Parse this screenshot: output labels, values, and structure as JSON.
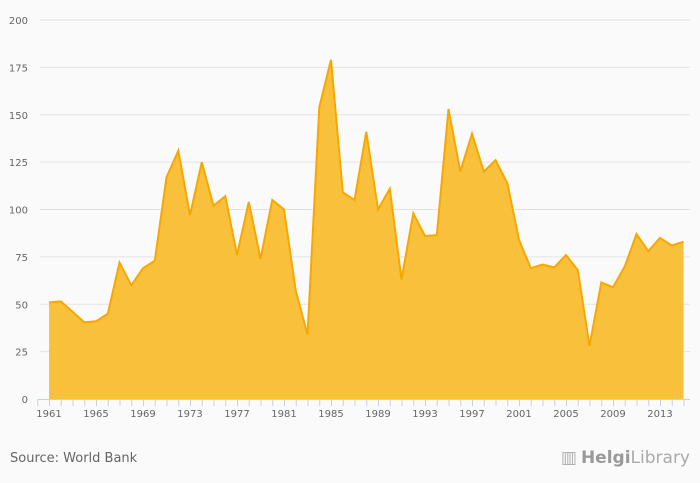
{
  "chart_data": {
    "type": "area",
    "title": "",
    "xlabel": "",
    "ylabel": "",
    "ylim": [
      0,
      200
    ],
    "yticks": [
      0,
      25,
      50,
      75,
      100,
      125,
      150,
      175,
      200
    ],
    "xtick_labels": [
      "1961",
      "1965",
      "1969",
      "1973",
      "1977",
      "1981",
      "1985",
      "1989",
      "1993",
      "1997",
      "2001",
      "2005",
      "2009",
      "2013"
    ],
    "grid": true,
    "color": "#f9c13b",
    "line_color": "#f7a800",
    "x": [
      1961,
      1962,
      1963,
      1964,
      1965,
      1966,
      1967,
      1968,
      1969,
      1970,
      1971,
      1972,
      1973,
      1974,
      1975,
      1976,
      1977,
      1978,
      1979,
      1980,
      1981,
      1982,
      1983,
      1984,
      1985,
      1986,
      1987,
      1988,
      1989,
      1990,
      1991,
      1992,
      1993,
      1994,
      1995,
      1996,
      1997,
      1998,
      1999,
      2000,
      2001,
      2002,
      2003,
      2004,
      2005,
      2006,
      2007,
      2008,
      2009,
      2010,
      2011,
      2012,
      2013,
      2014,
      2015
    ],
    "values": [
      51,
      51.5,
      46,
      40.5,
      41,
      45,
      72,
      60,
      69,
      73,
      117,
      131,
      97,
      125,
      102,
      107,
      76,
      104,
      74,
      105,
      100,
      57,
      34,
      154,
      179,
      109,
      105,
      141,
      100,
      111,
      63,
      98,
      86,
      86.5,
      153,
      120,
      140,
      120,
      126,
      114,
      84,
      69,
      71,
      69.5,
      76,
      68,
      28,
      61.5,
      59,
      70,
      87,
      78,
      85,
      81,
      83
    ]
  },
  "footer": {
    "source": "Source: World Bank",
    "logo_bold": "Helgi",
    "logo_light": "Library"
  }
}
